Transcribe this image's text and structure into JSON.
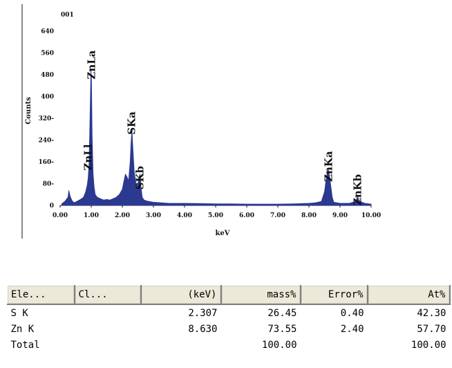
{
  "chart_data": {
    "type": "line",
    "title": "001",
    "xlabel": "keV",
    "ylabel": "Counts",
    "xlim": [
      0.0,
      10.0
    ],
    "ylim": [
      0,
      640
    ],
    "x_ticks": [
      "0.00",
      "1.00",
      "2.00",
      "3.00",
      "4.00",
      "5.00",
      "6.00",
      "7.00",
      "8.00",
      "9.00",
      "10.00"
    ],
    "y_ticks": [
      "0",
      "80-",
      "160-",
      "240-",
      "320-",
      "400",
      "480",
      "560",
      "640"
    ],
    "series": [
      {
        "color": "#2b3990",
        "x": [
          0.05,
          0.15,
          0.25,
          0.28,
          0.32,
          0.38,
          0.45,
          0.55,
          0.65,
          0.75,
          0.82,
          0.87,
          0.9,
          0.93,
          0.96,
          0.99,
          1.01,
          1.03,
          1.06,
          1.09,
          1.13,
          1.2,
          1.3,
          1.4,
          1.5,
          1.6,
          1.7,
          1.8,
          1.9,
          2.0,
          2.05,
          2.1,
          2.15,
          2.2,
          2.25,
          2.28,
          2.31,
          2.34,
          2.38,
          2.42,
          2.46,
          2.5,
          2.54,
          2.57,
          2.6,
          2.64,
          2.7,
          2.8,
          3.0,
          3.5,
          4.0,
          4.5,
          5.0,
          5.5,
          6.0,
          6.5,
          7.0,
          7.5,
          8.0,
          8.2,
          8.4,
          8.5,
          8.55,
          8.6,
          8.63,
          8.66,
          8.7,
          8.75,
          8.8,
          9.0,
          9.3,
          9.5,
          9.55,
          9.57,
          9.6,
          9.7,
          9.8,
          10.0
        ],
        "y": [
          6,
          15,
          30,
          55,
          35,
          18,
          10,
          16,
          22,
          30,
          50,
          75,
          100,
          150,
          320,
          500,
          460,
          260,
          120,
          70,
          40,
          30,
          25,
          20,
          22,
          20,
          25,
          30,
          40,
          60,
          90,
          115,
          105,
          90,
          160,
          230,
          280,
          210,
          130,
          90,
          70,
          80,
          105,
          115,
          70,
          30,
          20,
          16,
          12,
          8,
          8,
          7,
          6,
          6,
          5,
          5,
          5,
          6,
          8,
          10,
          15,
          50,
          95,
          125,
          130,
          110,
          75,
          30,
          12,
          8,
          8,
          15,
          28,
          32,
          20,
          12,
          8,
          5
        ]
      }
    ],
    "annotations": [
      {
        "text": "ZnLa",
        "x": 1.01,
        "y": 570
      },
      {
        "text": "ZnLl",
        "x": 0.9,
        "y": 225
      },
      {
        "text": "SKa",
        "x": 2.3,
        "y": 345
      },
      {
        "text": "SKb",
        "x": 2.57,
        "y": 145
      },
      {
        "text": "ZnKa",
        "x": 8.63,
        "y": 200
      },
      {
        "text": "ZnKb",
        "x": 9.57,
        "y": 115
      }
    ],
    "grid": false
  },
  "table": {
    "columns": [
      "Ele...",
      "Cl...",
      "(keV)",
      "mass%",
      "Error%",
      "At%"
    ],
    "rows": [
      [
        "S  K",
        "",
        "2.307",
        "26.45",
        "0.40",
        "42.30"
      ],
      [
        "Zn K",
        "",
        "8.630",
        "73.55",
        "2.40",
        "57.70"
      ],
      [
        "Total",
        "",
        "",
        "100.00",
        "",
        "100.00"
      ]
    ]
  }
}
